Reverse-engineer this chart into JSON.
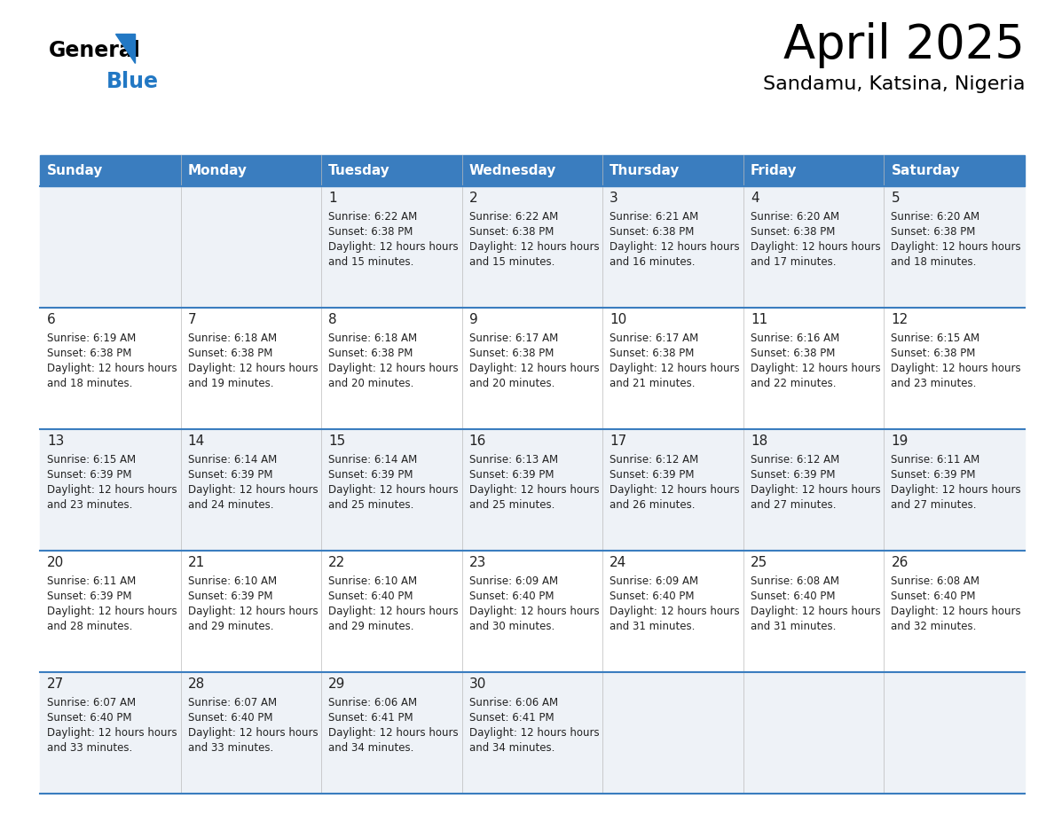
{
  "title": "April 2025",
  "subtitle": "Sandamu, Katsina, Nigeria",
  "header_bg": "#3a7dbf",
  "header_text": "#ffffff",
  "row_bg_odd": "#eef2f7",
  "row_bg_even": "#ffffff",
  "row_line_color": "#3a7dbf",
  "text_color": "#222222",
  "days_of_week": [
    "Sunday",
    "Monday",
    "Tuesday",
    "Wednesday",
    "Thursday",
    "Friday",
    "Saturday"
  ],
  "weeks": [
    [
      {
        "day": "",
        "sunrise": "",
        "sunset": "",
        "daylight": ""
      },
      {
        "day": "",
        "sunrise": "",
        "sunset": "",
        "daylight": ""
      },
      {
        "day": "1",
        "sunrise": "6:22 AM",
        "sunset": "6:38 PM",
        "daylight": "12 hours and 15 minutes."
      },
      {
        "day": "2",
        "sunrise": "6:22 AM",
        "sunset": "6:38 PM",
        "daylight": "12 hours and 15 minutes."
      },
      {
        "day": "3",
        "sunrise": "6:21 AM",
        "sunset": "6:38 PM",
        "daylight": "12 hours and 16 minutes."
      },
      {
        "day": "4",
        "sunrise": "6:20 AM",
        "sunset": "6:38 PM",
        "daylight": "12 hours and 17 minutes."
      },
      {
        "day": "5",
        "sunrise": "6:20 AM",
        "sunset": "6:38 PM",
        "daylight": "12 hours and 18 minutes."
      }
    ],
    [
      {
        "day": "6",
        "sunrise": "6:19 AM",
        "sunset": "6:38 PM",
        "daylight": "12 hours and 18 minutes."
      },
      {
        "day": "7",
        "sunrise": "6:18 AM",
        "sunset": "6:38 PM",
        "daylight": "12 hours and 19 minutes."
      },
      {
        "day": "8",
        "sunrise": "6:18 AM",
        "sunset": "6:38 PM",
        "daylight": "12 hours and 20 minutes."
      },
      {
        "day": "9",
        "sunrise": "6:17 AM",
        "sunset": "6:38 PM",
        "daylight": "12 hours and 20 minutes."
      },
      {
        "day": "10",
        "sunrise": "6:17 AM",
        "sunset": "6:38 PM",
        "daylight": "12 hours and 21 minutes."
      },
      {
        "day": "11",
        "sunrise": "6:16 AM",
        "sunset": "6:38 PM",
        "daylight": "12 hours and 22 minutes."
      },
      {
        "day": "12",
        "sunrise": "6:15 AM",
        "sunset": "6:38 PM",
        "daylight": "12 hours and 23 minutes."
      }
    ],
    [
      {
        "day": "13",
        "sunrise": "6:15 AM",
        "sunset": "6:39 PM",
        "daylight": "12 hours and 23 minutes."
      },
      {
        "day": "14",
        "sunrise": "6:14 AM",
        "sunset": "6:39 PM",
        "daylight": "12 hours and 24 minutes."
      },
      {
        "day": "15",
        "sunrise": "6:14 AM",
        "sunset": "6:39 PM",
        "daylight": "12 hours and 25 minutes."
      },
      {
        "day": "16",
        "sunrise": "6:13 AM",
        "sunset": "6:39 PM",
        "daylight": "12 hours and 25 minutes."
      },
      {
        "day": "17",
        "sunrise": "6:12 AM",
        "sunset": "6:39 PM",
        "daylight": "12 hours and 26 minutes."
      },
      {
        "day": "18",
        "sunrise": "6:12 AM",
        "sunset": "6:39 PM",
        "daylight": "12 hours and 27 minutes."
      },
      {
        "day": "19",
        "sunrise": "6:11 AM",
        "sunset": "6:39 PM",
        "daylight": "12 hours and 27 minutes."
      }
    ],
    [
      {
        "day": "20",
        "sunrise": "6:11 AM",
        "sunset": "6:39 PM",
        "daylight": "12 hours and 28 minutes."
      },
      {
        "day": "21",
        "sunrise": "6:10 AM",
        "sunset": "6:39 PM",
        "daylight": "12 hours and 29 minutes."
      },
      {
        "day": "22",
        "sunrise": "6:10 AM",
        "sunset": "6:40 PM",
        "daylight": "12 hours and 29 minutes."
      },
      {
        "day": "23",
        "sunrise": "6:09 AM",
        "sunset": "6:40 PM",
        "daylight": "12 hours and 30 minutes."
      },
      {
        "day": "24",
        "sunrise": "6:09 AM",
        "sunset": "6:40 PM",
        "daylight": "12 hours and 31 minutes."
      },
      {
        "day": "25",
        "sunrise": "6:08 AM",
        "sunset": "6:40 PM",
        "daylight": "12 hours and 31 minutes."
      },
      {
        "day": "26",
        "sunrise": "6:08 AM",
        "sunset": "6:40 PM",
        "daylight": "12 hours and 32 minutes."
      }
    ],
    [
      {
        "day": "27",
        "sunrise": "6:07 AM",
        "sunset": "6:40 PM",
        "daylight": "12 hours and 33 minutes."
      },
      {
        "day": "28",
        "sunrise": "6:07 AM",
        "sunset": "6:40 PM",
        "daylight": "12 hours and 33 minutes."
      },
      {
        "day": "29",
        "sunrise": "6:06 AM",
        "sunset": "6:41 PM",
        "daylight": "12 hours and 34 minutes."
      },
      {
        "day": "30",
        "sunrise": "6:06 AM",
        "sunset": "6:41 PM",
        "daylight": "12 hours and 34 minutes."
      },
      {
        "day": "",
        "sunrise": "",
        "sunset": "",
        "daylight": ""
      },
      {
        "day": "",
        "sunrise": "",
        "sunset": "",
        "daylight": ""
      },
      {
        "day": "",
        "sunrise": "",
        "sunset": "",
        "daylight": ""
      }
    ]
  ],
  "logo_blue": "#2278c4",
  "title_fontsize": 38,
  "subtitle_fontsize": 16,
  "header_fontsize": 11,
  "day_num_fontsize": 11,
  "cell_text_fontsize": 8.5
}
